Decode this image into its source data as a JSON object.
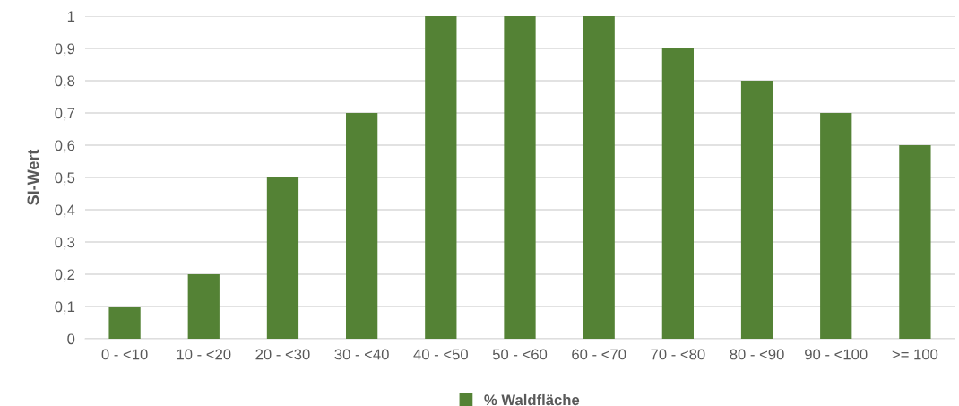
{
  "chart_data": {
    "type": "bar",
    "ylabel": "SI-Wert",
    "categories": [
      "0 - <10",
      "10 - <20",
      "20 - <30",
      "30 - <40",
      "40 - <50",
      "50 - <60",
      "60 - <70",
      "70 - <80",
      "80 - <90",
      "90 - <100",
      ">= 100"
    ],
    "series": [
      {
        "name": "% Waldfläche",
        "color": "#548235",
        "values": [
          0.1,
          0.2,
          0.5,
          0.7,
          1,
          1,
          1,
          0.9,
          0.8,
          0.7,
          0.6
        ]
      }
    ],
    "ylim": [
      0,
      1
    ],
    "yticks": [
      0,
      {
        "value": 0.1,
        "label": "0,1"
      },
      {
        "value": 0.2,
        "label": "0,2"
      },
      {
        "value": 0.3,
        "label": "0,3"
      },
      {
        "value": 0.4,
        "label": "0,4"
      },
      {
        "value": 0.5,
        "label": "0,5"
      },
      {
        "value": 0.6,
        "label": "0,6"
      },
      {
        "value": 0.7,
        "label": "0,7"
      },
      {
        "value": 0.8,
        "label": "0,8"
      },
      {
        "value": 0.9,
        "label": "0,9"
      },
      1
    ],
    "grid": "y",
    "legend": "bottom"
  }
}
